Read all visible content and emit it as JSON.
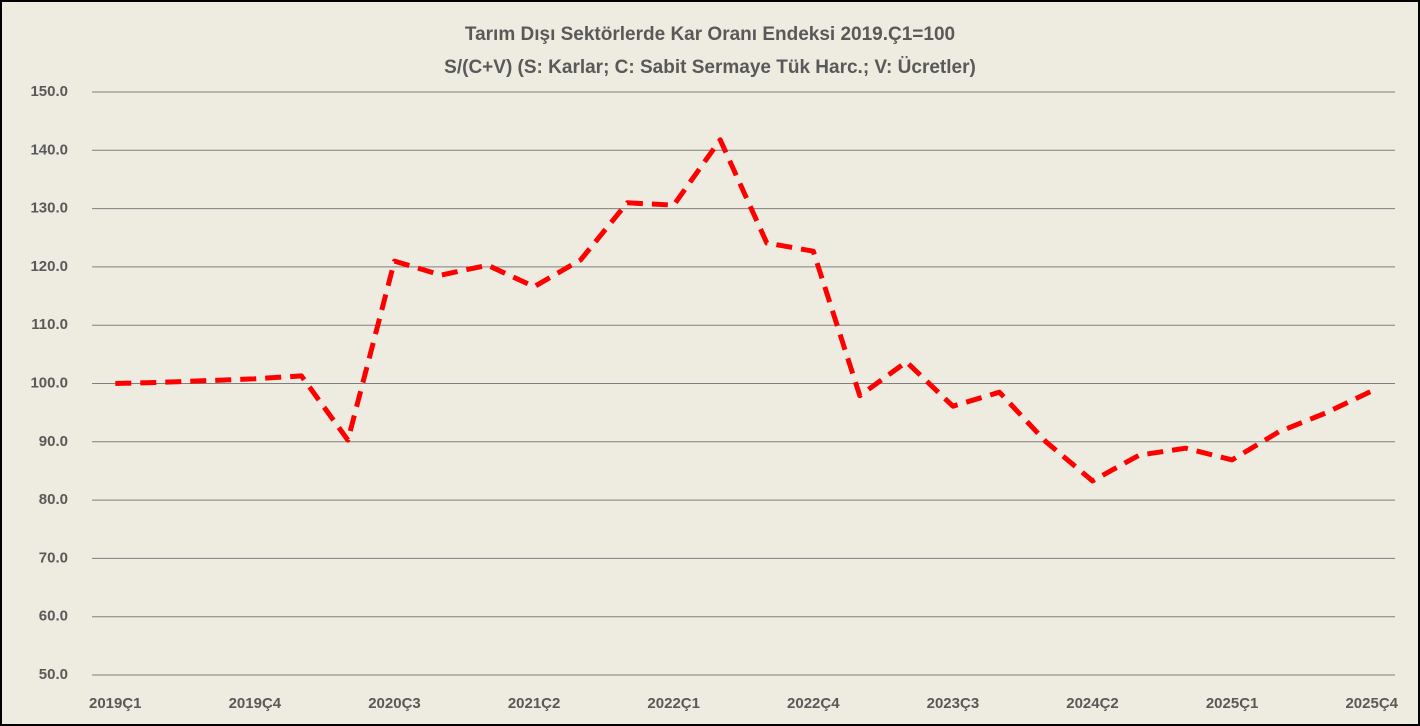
{
  "chart_data": {
    "type": "line",
    "title": "Tarım Dışı Sektörlerde Kar Oranı Endeksi 2019.Ç1=100",
    "subtitle": "S/(C+V)   (S: Karlar; C: Sabit Sermaye Tük Harc.; V: Ücretler)",
    "categories": [
      "2019Ç1",
      null,
      null,
      "2019Ç4",
      null,
      null,
      "2020Ç3",
      null,
      null,
      "2021Ç2",
      null,
      null,
      "2022Ç1",
      null,
      null,
      "2022Ç4",
      null,
      null,
      "2023Ç3",
      null,
      null,
      "2024Ç2",
      null,
      null,
      "2025Ç1",
      null,
      null,
      "2025Ç4"
    ],
    "series": [
      {
        "color": "#ff0000",
        "values": [
          100,
          100.2,
          100.5,
          100.8,
          101.3,
          90.3,
          121,
          118.6,
          120.3,
          116.6,
          121.2,
          131,
          130.6,
          141.8,
          124.1,
          122.7,
          97.9,
          103.7,
          96.1,
          98.5,
          90,
          83.3,
          87.7,
          88.9,
          86.9,
          91.7,
          94.9,
          98.7
        ]
      }
    ],
    "ylim": [
      50,
      150
    ],
    "yticks": [
      {
        "value": 50,
        "label": "50.0"
      },
      {
        "value": 60,
        "label": "60.0"
      },
      {
        "value": 70,
        "label": "70.0"
      },
      {
        "value": 80,
        "label": "80.0"
      },
      {
        "value": 90,
        "label": "90.0"
      },
      {
        "value": 100,
        "label": "100.0"
      },
      {
        "value": 110,
        "label": "110.0"
      },
      {
        "value": 120,
        "label": "120.0"
      },
      {
        "value": 130,
        "label": "130.0"
      },
      {
        "value": 140,
        "label": "140.0"
      },
      {
        "value": 150,
        "label": "150.0"
      }
    ],
    "grid": true,
    "line_style": "dashed"
  }
}
